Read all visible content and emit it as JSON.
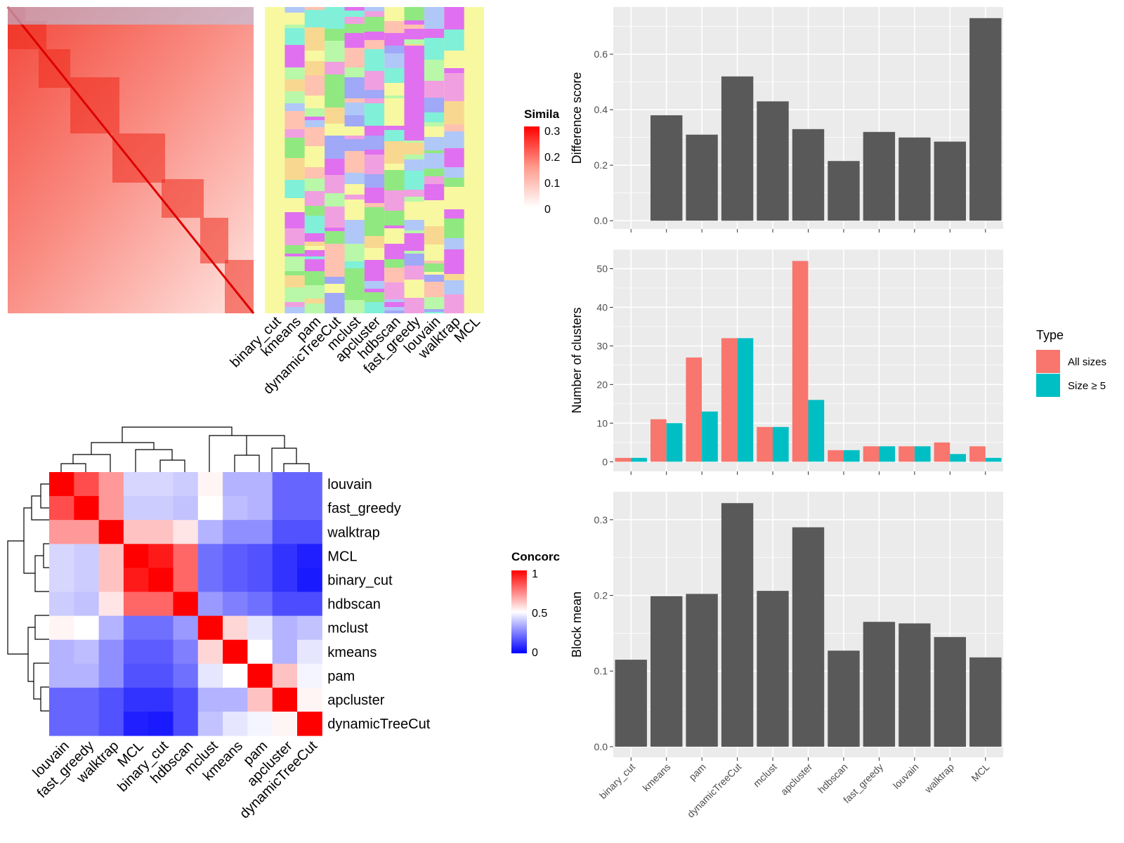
{
  "colors": {
    "panel_bg": "#ebebeb",
    "grid": "#ffffff",
    "bar": "#595959",
    "all_sizes": "#f8766d",
    "size_ge5": "#00bfc4",
    "sim_low": "#ffffff",
    "sim_high": "#ff0000",
    "conc_low": "#0000ff",
    "conc_mid": "#ffffff",
    "conc_high": "#ff0000",
    "annot_bg": "#f8f8a0"
  },
  "chart_data": [
    {
      "id": "similarity-heatmap",
      "type": "heatmap",
      "legend_title": "Simila",
      "legend_ticks": [
        "0.3",
        "0.2",
        "0.1",
        "0"
      ],
      "annotation_columns": [
        "binary_cut",
        "kmeans",
        "pam",
        "dynamicTreeCut",
        "mclust",
        "apcluster",
        "hdbscan",
        "fast_greedy",
        "louvain",
        "walktrap",
        "MCL"
      ]
    },
    {
      "id": "concordance-heatmap",
      "type": "heatmap",
      "legend_title": "Concorc",
      "legend_ticks": [
        "1",
        "0.5",
        "0"
      ],
      "rows": [
        "louvain",
        "fast_greedy",
        "walktrap",
        "MCL",
        "binary_cut",
        "hdbscan",
        "mclust",
        "kmeans",
        "pam",
        "apcluster",
        "dynamicTreeCut"
      ],
      "columns": [
        "louvain",
        "fast_greedy",
        "walktrap",
        "MCL",
        "binary_cut",
        "hdbscan",
        "mclust",
        "kmeans",
        "pam",
        "apcluster",
        "dynamicTreeCut"
      ],
      "values": [
        [
          1.0,
          0.85,
          0.7,
          0.42,
          0.42,
          0.4,
          0.52,
          0.35,
          0.35,
          0.2,
          0.2
        ],
        [
          0.85,
          1.0,
          0.7,
          0.4,
          0.4,
          0.38,
          0.5,
          0.37,
          0.35,
          0.2,
          0.2
        ],
        [
          0.7,
          0.7,
          1.0,
          0.62,
          0.62,
          0.55,
          0.35,
          0.28,
          0.28,
          0.16,
          0.16
        ],
        [
          0.42,
          0.4,
          0.62,
          1.0,
          0.95,
          0.8,
          0.22,
          0.18,
          0.16,
          0.1,
          0.06
        ],
        [
          0.42,
          0.4,
          0.62,
          0.95,
          1.0,
          0.8,
          0.22,
          0.18,
          0.16,
          0.1,
          0.05
        ],
        [
          0.4,
          0.38,
          0.55,
          0.8,
          0.8,
          1.0,
          0.3,
          0.25,
          0.22,
          0.15,
          0.15
        ],
        [
          0.52,
          0.5,
          0.35,
          0.22,
          0.22,
          0.3,
          1.0,
          0.58,
          0.45,
          0.35,
          0.38
        ],
        [
          0.35,
          0.37,
          0.28,
          0.18,
          0.18,
          0.25,
          0.58,
          1.0,
          0.5,
          0.35,
          0.45
        ],
        [
          0.35,
          0.35,
          0.28,
          0.16,
          0.16,
          0.22,
          0.45,
          0.5,
          1.0,
          0.62,
          0.48
        ],
        [
          0.2,
          0.2,
          0.16,
          0.1,
          0.1,
          0.15,
          0.35,
          0.35,
          0.62,
          1.0,
          0.52
        ],
        [
          0.2,
          0.2,
          0.16,
          0.06,
          0.05,
          0.15,
          0.38,
          0.45,
          0.48,
          0.52,
          1.0
        ]
      ]
    },
    {
      "id": "difference-score",
      "type": "bar",
      "categories": [
        "binary_cut",
        "kmeans",
        "pam",
        "dynamicTreeCut",
        "mclust",
        "apcluster",
        "hdbscan",
        "fast_greedy",
        "louvain",
        "walktrap",
        "MCL"
      ],
      "values": [
        0.0,
        0.38,
        0.31,
        0.52,
        0.43,
        0.33,
        0.215,
        0.32,
        0.3,
        0.285,
        0.73
      ],
      "ylabel": "Difference score",
      "ylim": [
        -0.03,
        0.77
      ],
      "yticks": [
        "0.0",
        "0.2",
        "0.4",
        "0.6"
      ],
      "grid": true
    },
    {
      "id": "number-of-clusters",
      "type": "bar",
      "categories": [
        "binary_cut",
        "kmeans",
        "pam",
        "dynamicTreeCut",
        "mclust",
        "apcluster",
        "hdbscan",
        "fast_greedy",
        "louvain",
        "walktrap",
        "MCL"
      ],
      "series": [
        {
          "name": "All sizes",
          "values": [
            1,
            11,
            27,
            32,
            9,
            52,
            3,
            4,
            4,
            5,
            4
          ]
        },
        {
          "name": "Size ≥ 5",
          "values": [
            1,
            10,
            13,
            32,
            9,
            16,
            3,
            4,
            4,
            2,
            1
          ]
        }
      ],
      "ylabel": "Number of clusters",
      "ylim": [
        -2.5,
        55
      ],
      "yticks": [
        "0",
        "10",
        "20",
        "30",
        "40",
        "50"
      ],
      "legend_title": "Type",
      "legend_position": "right",
      "grid": true
    },
    {
      "id": "block-mean",
      "type": "bar",
      "categories": [
        "binary_cut",
        "kmeans",
        "pam",
        "dynamicTreeCut",
        "mclust",
        "apcluster",
        "hdbscan",
        "fast_greedy",
        "louvain",
        "walktrap",
        "MCL"
      ],
      "values": [
        0.115,
        0.199,
        0.202,
        0.322,
        0.206,
        0.29,
        0.127,
        0.165,
        0.163,
        0.145,
        0.118
      ],
      "ylabel": "Block mean",
      "ylim": [
        -0.014,
        0.337
      ],
      "yticks": [
        "0.0",
        "0.1",
        "0.2",
        "0.3"
      ],
      "grid": true
    }
  ]
}
